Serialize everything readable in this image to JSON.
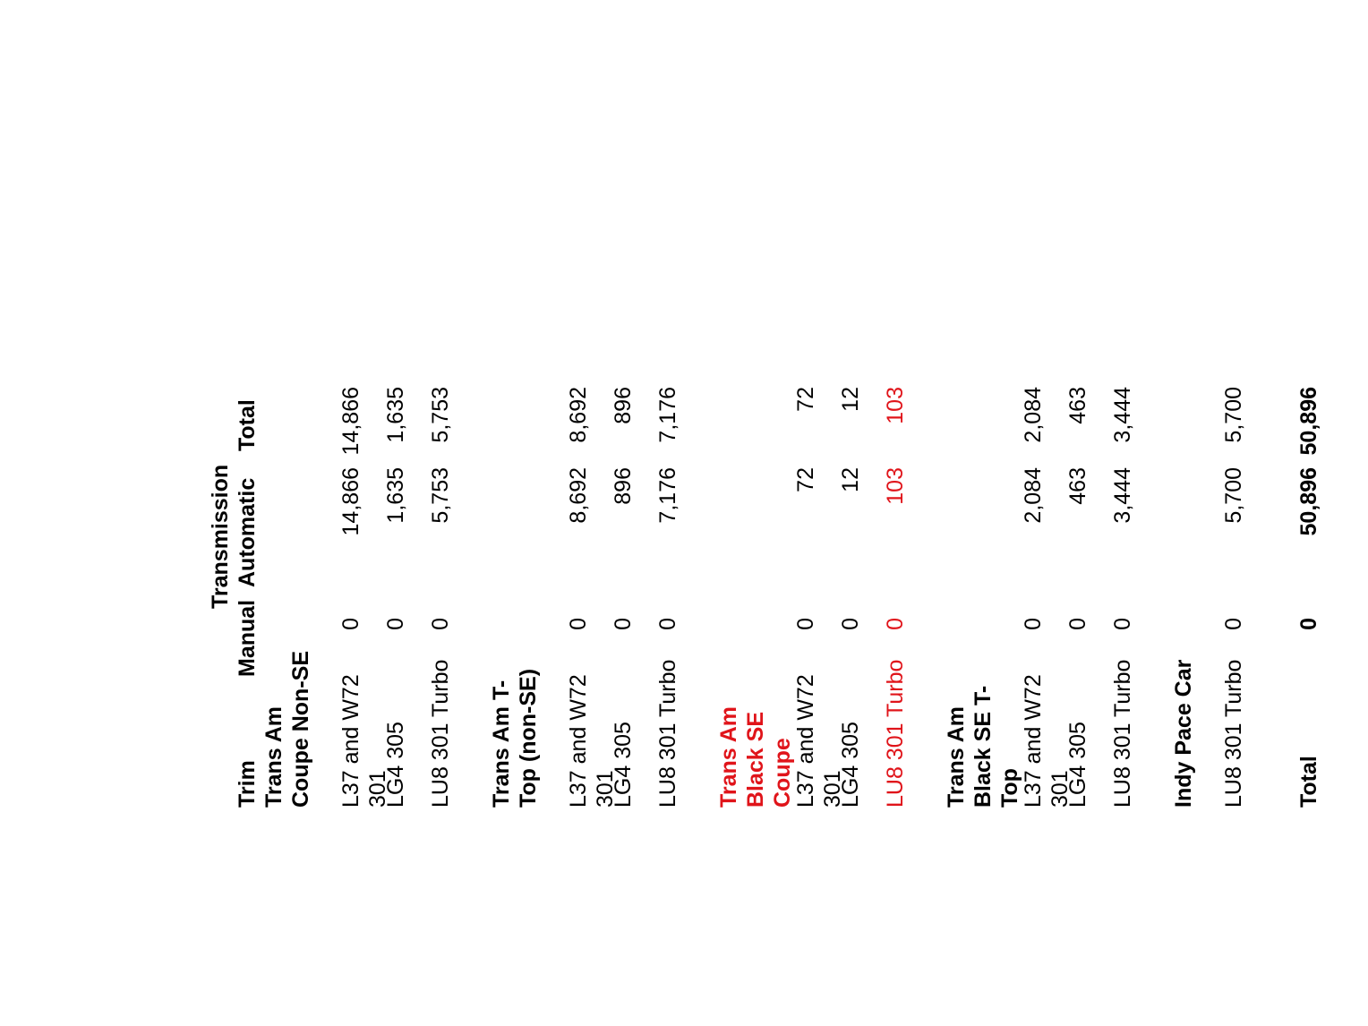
{
  "header": {
    "group_label": "Transmission",
    "columns": [
      "Trim",
      "Manual",
      "Automatic",
      "Total"
    ]
  },
  "rows": [
    {
      "trim": "Trans Am Coupe Non-SE",
      "manual": "",
      "automatic": "",
      "total": "",
      "section": true,
      "highlight": false
    },
    {
      "trim": "L37 and W72 301",
      "manual": "0",
      "automatic": "14,866",
      "total": "14,866",
      "section": false,
      "highlight": false
    },
    {
      "trim": "LG4 305",
      "manual": "0",
      "automatic": "1,635",
      "total": "1,635",
      "section": false,
      "highlight": false
    },
    {
      "trim": "LU8 301 Turbo",
      "manual": "0",
      "automatic": "5,753",
      "total": "5,753",
      "section": false,
      "highlight": false
    },
    {
      "trim": "Trans Am T-Top (non-SE)",
      "manual": "",
      "automatic": "",
      "total": "",
      "section": true,
      "highlight": false
    },
    {
      "trim": "L37 and W72 301",
      "manual": "0",
      "automatic": "8,692",
      "total": "8,692",
      "section": false,
      "highlight": false
    },
    {
      "trim": "LG4 305",
      "manual": "0",
      "automatic": "896",
      "total": "896",
      "section": false,
      "highlight": false
    },
    {
      "trim": "LU8 301 Turbo",
      "manual": "0",
      "automatic": "7,176",
      "total": "7,176",
      "section": false,
      "highlight": false
    },
    {
      "trim": "Trans Am Black SE Coupe",
      "manual": "",
      "automatic": "",
      "total": "",
      "section": true,
      "highlight": true
    },
    {
      "trim": "L37 and W72 301",
      "manual": "0",
      "automatic": "72",
      "total": "72",
      "section": false,
      "highlight": false
    },
    {
      "trim": "LG4 305",
      "manual": "0",
      "automatic": "12",
      "total": "12",
      "section": false,
      "highlight": false
    },
    {
      "trim": "LU8 301 Turbo",
      "manual": "0",
      "automatic": "103",
      "total": "103",
      "section": false,
      "highlight": true
    },
    {
      "trim": "Trans Am Black SE T-Top",
      "manual": "",
      "automatic": "",
      "total": "",
      "section": true,
      "highlight": false
    },
    {
      "trim": "L37 and W72 301",
      "manual": "0",
      "automatic": "2,084",
      "total": "2,084",
      "section": false,
      "highlight": false
    },
    {
      "trim": "LG4 305",
      "manual": "0",
      "automatic": "463",
      "total": "463",
      "section": false,
      "highlight": false
    },
    {
      "trim": "LU8 301 Turbo",
      "manual": "0",
      "automatic": "3,444",
      "total": "3,444",
      "section": false,
      "highlight": false
    },
    {
      "trim": "Indy Pace Car",
      "manual": "",
      "automatic": "",
      "total": "",
      "section": true,
      "highlight": false
    },
    {
      "trim": "LU8 301 Turbo",
      "manual": "0",
      "automatic": "5,700",
      "total": "5,700",
      "section": false,
      "highlight": false
    },
    {
      "trim": "Total",
      "manual": "0",
      "automatic": "50,896",
      "total": "50,896",
      "section": true,
      "highlight": false
    }
  ],
  "colors": {
    "highlight": "#e0141a",
    "text": "#000000"
  }
}
